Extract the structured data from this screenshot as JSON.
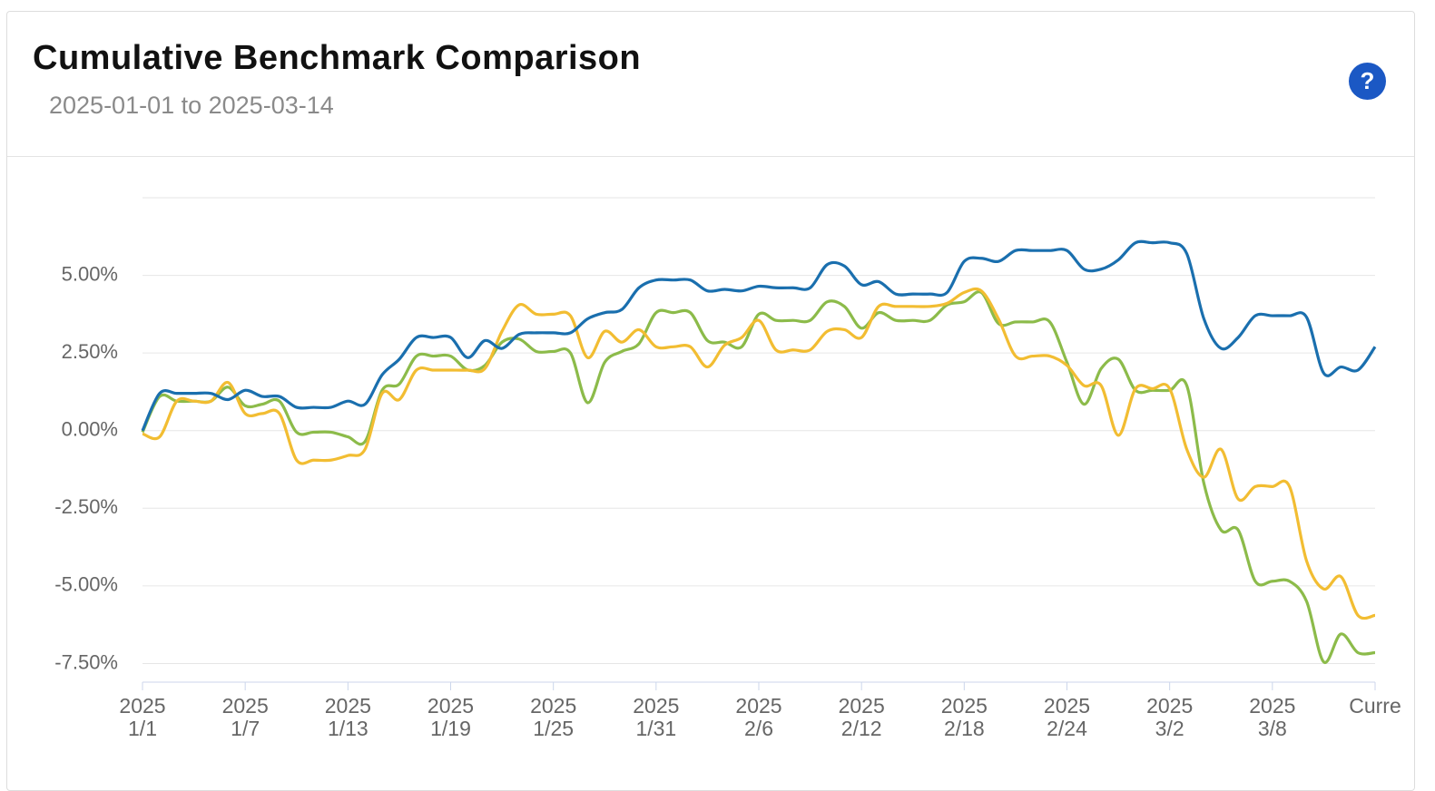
{
  "chart_data": {
    "type": "line",
    "title": "Cumulative Benchmark Comparison",
    "subtitle": "2025-01-01 to 2025-03-14",
    "help": "?",
    "categories": [
      "2025\n1/1",
      null,
      null,
      null,
      null,
      null,
      "2025\n1/7",
      null,
      null,
      null,
      null,
      null,
      "2025\n1/13",
      null,
      null,
      null,
      null,
      null,
      "2025\n1/19",
      null,
      null,
      null,
      null,
      null,
      "2025\n1/25",
      null,
      null,
      null,
      null,
      null,
      "2025\n1/31",
      null,
      null,
      null,
      null,
      null,
      "2025\n2/6",
      null,
      null,
      null,
      null,
      null,
      "2025\n2/12",
      null,
      null,
      null,
      null,
      null,
      "2025\n2/18",
      null,
      null,
      null,
      null,
      null,
      "2025\n2/24",
      null,
      null,
      null,
      null,
      null,
      "2025\n3/2",
      null,
      null,
      null,
      null,
      null,
      "2025\n3/8",
      null,
      null,
      null,
      null,
      null,
      "Curre"
    ],
    "series": [
      {
        "color": "#1a6fae",
        "values": [
          0,
          1.2,
          1.2,
          1.2,
          1.2,
          1.0,
          1.3,
          1.1,
          1.1,
          0.75,
          0.75,
          0.75,
          0.95,
          0.85,
          1.8,
          2.3,
          3.0,
          3.0,
          3.0,
          2.35,
          2.9,
          2.65,
          3.1,
          3.15,
          3.15,
          3.15,
          3.6,
          3.8,
          3.9,
          4.6,
          4.85,
          4.85,
          4.85,
          4.5,
          4.55,
          4.5,
          4.65,
          4.6,
          4.6,
          4.6,
          5.35,
          5.3,
          4.7,
          4.8,
          4.4,
          4.4,
          4.4,
          4.45,
          5.45,
          5.55,
          5.45,
          5.8,
          5.8,
          5.8,
          5.8,
          5.2,
          5.2,
          5.5,
          6.05,
          6.05,
          6.05,
          5.7,
          3.6,
          2.65,
          3.0,
          3.7,
          3.7,
          3.7,
          3.65,
          1.85,
          2.05,
          1.95,
          2.7
        ]
      },
      {
        "color": "#f2bd32",
        "values": [
          -0.1,
          -0.2,
          0.95,
          0.95,
          0.95,
          1.55,
          0.55,
          0.55,
          0.55,
          -0.95,
          -0.95,
          -0.95,
          -0.8,
          -0.6,
          1.2,
          1.0,
          1.95,
          1.95,
          1.95,
          1.95,
          2.0,
          3.2,
          4.05,
          3.75,
          3.75,
          3.7,
          2.35,
          3.2,
          2.85,
          3.25,
          2.7,
          2.7,
          2.7,
          2.05,
          2.75,
          3.0,
          3.55,
          2.6,
          2.6,
          2.6,
          3.2,
          3.25,
          3.0,
          4.0,
          4.0,
          4.0,
          4.0,
          4.1,
          4.45,
          4.5,
          3.6,
          2.4,
          2.4,
          2.4,
          2.1,
          1.45,
          1.45,
          -0.15,
          1.35,
          1.35,
          1.35,
          -0.6,
          -1.5,
          -0.6,
          -2.2,
          -1.8,
          -1.8,
          -1.8,
          -4.2,
          -5.1,
          -4.7,
          -5.95,
          -5.95
        ]
      },
      {
        "color": "#8cbb4a",
        "values": [
          -0.05,
          1.1,
          0.95,
          0.95,
          0.95,
          1.4,
          0.8,
          0.85,
          0.95,
          -0.05,
          -0.05,
          -0.05,
          -0.2,
          -0.35,
          1.3,
          1.5,
          2.4,
          2.4,
          2.4,
          1.95,
          2.1,
          2.85,
          2.95,
          2.55,
          2.55,
          2.5,
          0.9,
          2.2,
          2.55,
          2.8,
          3.8,
          3.8,
          3.8,
          2.9,
          2.85,
          2.7,
          3.75,
          3.55,
          3.55,
          3.55,
          4.15,
          4.0,
          3.3,
          3.8,
          3.55,
          3.55,
          3.55,
          4.05,
          4.15,
          4.45,
          3.45,
          3.5,
          3.5,
          3.5,
          2.2,
          0.85,
          2.0,
          2.3,
          1.3,
          1.3,
          1.3,
          1.45,
          -1.7,
          -3.2,
          -3.2,
          -4.85,
          -4.85,
          -4.85,
          -5.5,
          -7.45,
          -6.55,
          -7.15,
          -7.15
        ]
      }
    ],
    "ylim": [
      -8.1,
      7.5
    ],
    "yticks": [
      {
        "value": -7.5,
        "label": "-7.50%"
      },
      {
        "value": -5,
        "label": "-5.00%"
      },
      {
        "value": -2.5,
        "label": "-2.50%"
      },
      {
        "value": 0,
        "label": "0.00%"
      },
      {
        "value": 2.5,
        "label": "2.50%"
      },
      {
        "value": 5,
        "label": "5.00%"
      }
    ],
    "grid": true
  }
}
